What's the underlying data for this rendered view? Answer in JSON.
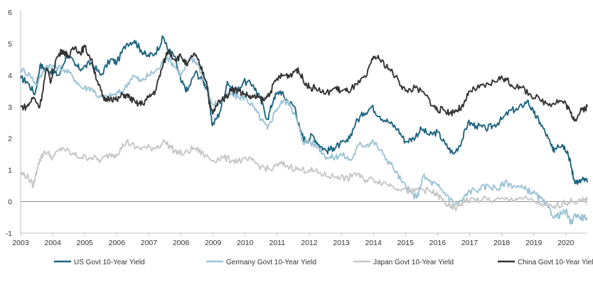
{
  "chart_data": {
    "type": "line",
    "xlabel": "",
    "ylabel": "",
    "xlim": [
      2003,
      2020.67
    ],
    "ylim": [
      -1,
      6
    ],
    "x_ticks": [
      "2003",
      "2004",
      "2005",
      "2006",
      "2007",
      "2008",
      "2009",
      "2010",
      "2011",
      "2012",
      "2013",
      "2014",
      "2015",
      "2016",
      "2017",
      "2018",
      "2019",
      "2020"
    ],
    "y_ticks": [
      "-1",
      "0",
      "1",
      "2",
      "3",
      "4",
      "5",
      "6"
    ],
    "zero_line": true,
    "grid": false,
    "legend_position": "bottom",
    "series": [
      {
        "name": "US Govt 10-Year Yield",
        "color": "#1f6580",
        "x": [
          2003.0,
          2003.2,
          2003.45,
          2003.6,
          2003.8,
          2004.0,
          2004.2,
          2004.45,
          2004.7,
          2004.9,
          2005.2,
          2005.5,
          2005.8,
          2006.0,
          2006.3,
          2006.55,
          2006.75,
          2006.95,
          2007.2,
          2007.45,
          2007.6,
          2007.8,
          2008.0,
          2008.2,
          2008.45,
          2008.7,
          2008.85,
          2008.98,
          2009.2,
          2009.45,
          2009.7,
          2009.95,
          2010.25,
          2010.45,
          2010.7,
          2010.9,
          2011.1,
          2011.3,
          2011.55,
          2011.72,
          2011.9,
          2012.1,
          2012.3,
          2012.55,
          2012.75,
          2012.95,
          2013.2,
          2013.45,
          2013.7,
          2013.95,
          2014.2,
          2014.5,
          2014.75,
          2015.0,
          2015.25,
          2015.5,
          2015.75,
          2016.0,
          2016.25,
          2016.5,
          2016.75,
          2016.95,
          2017.2,
          2017.5,
          2017.75,
          2018.0,
          2018.3,
          2018.5,
          2018.8,
          2019.0,
          2019.2,
          2019.45,
          2019.6,
          2019.75,
          2019.9,
          2020.05,
          2020.15,
          2020.25,
          2020.4,
          2020.55,
          2020.67
        ],
        "values": [
          3.9,
          3.8,
          3.4,
          4.3,
          4.2,
          4.1,
          4.0,
          4.7,
          4.3,
          4.2,
          4.4,
          4.0,
          4.5,
          4.4,
          5.0,
          5.1,
          4.8,
          4.6,
          4.7,
          5.2,
          4.8,
          4.6,
          3.8,
          3.5,
          4.1,
          3.8,
          3.5,
          2.4,
          2.8,
          3.8,
          3.4,
          3.8,
          3.7,
          3.3,
          2.6,
          3.3,
          3.5,
          3.2,
          3.0,
          2.2,
          1.9,
          2.1,
          1.8,
          1.6,
          1.7,
          1.8,
          1.9,
          2.5,
          2.8,
          3.0,
          2.7,
          2.5,
          2.3,
          1.9,
          2.0,
          2.3,
          2.1,
          2.2,
          1.8,
          1.5,
          1.9,
          2.5,
          2.4,
          2.3,
          2.4,
          2.6,
          2.9,
          2.9,
          3.2,
          2.8,
          2.5,
          2.0,
          1.6,
          1.8,
          1.8,
          1.6,
          1.2,
          0.7,
          0.6,
          0.7,
          0.6
        ]
      },
      {
        "name": "Germany Govt 10-Year Yield",
        "color": "#9cc3d5",
        "x": [
          2003.0,
          2003.3,
          2003.5,
          2003.8,
          2004.0,
          2004.3,
          2004.6,
          2004.9,
          2005.2,
          2005.45,
          2005.7,
          2005.95,
          2006.2,
          2006.5,
          2006.75,
          2007.0,
          2007.3,
          2007.55,
          2007.8,
          2008.0,
          2008.3,
          2008.5,
          2008.75,
          2008.95,
          2009.2,
          2009.5,
          2009.8,
          2010.0,
          2010.25,
          2010.5,
          2010.7,
          2010.95,
          2011.2,
          2011.4,
          2011.6,
          2011.8,
          2012.0,
          2012.3,
          2012.55,
          2012.8,
          2013.0,
          2013.3,
          2013.55,
          2013.8,
          2014.0,
          2014.3,
          2014.6,
          2014.9,
          2015.15,
          2015.35,
          2015.55,
          2015.8,
          2016.0,
          2016.3,
          2016.55,
          2016.75,
          2016.95,
          2017.3,
          2017.6,
          2017.9,
          2018.1,
          2018.4,
          2018.7,
          2018.95,
          2019.2,
          2019.45,
          2019.65,
          2019.85,
          2020.0,
          2020.15,
          2020.3,
          2020.45,
          2020.67
        ],
        "values": [
          4.2,
          4.0,
          3.7,
          4.3,
          4.3,
          4.2,
          4.0,
          3.6,
          3.6,
          3.3,
          3.3,
          3.4,
          3.5,
          4.0,
          3.8,
          4.0,
          4.2,
          4.6,
          4.3,
          4.0,
          4.5,
          4.4,
          3.8,
          3.1,
          3.1,
          3.4,
          3.3,
          3.3,
          3.0,
          2.6,
          2.3,
          2.9,
          3.2,
          3.1,
          2.6,
          1.9,
          1.9,
          1.7,
          1.4,
          1.4,
          1.5,
          1.3,
          1.8,
          1.8,
          1.9,
          1.5,
          1.1,
          0.6,
          0.3,
          0.1,
          0.8,
          0.6,
          0.5,
          0.2,
          -0.1,
          0.0,
          0.3,
          0.4,
          0.5,
          0.4,
          0.6,
          0.5,
          0.4,
          0.3,
          0.1,
          -0.2,
          -0.5,
          -0.4,
          -0.3,
          -0.7,
          -0.4,
          -0.5,
          -0.5
        ]
      },
      {
        "name": "Japan Govt 10-Year Yield",
        "color": "#c6c6c6",
        "x": [
          2003.0,
          2003.2,
          2003.4,
          2003.55,
          2003.75,
          2004.0,
          2004.3,
          2004.6,
          2004.9,
          2005.2,
          2005.5,
          2005.8,
          2006.0,
          2006.3,
          2006.6,
          2006.9,
          2007.2,
          2007.5,
          2007.8,
          2008.1,
          2008.4,
          2008.7,
          2009.0,
          2009.3,
          2009.6,
          2009.9,
          2010.2,
          2010.5,
          2010.8,
          2011.1,
          2011.4,
          2011.7,
          2012.0,
          2012.3,
          2012.6,
          2012.9,
          2013.2,
          2013.4,
          2013.7,
          2014.0,
          2014.3,
          2014.6,
          2014.9,
          2015.2,
          2015.5,
          2015.8,
          2016.0,
          2016.2,
          2016.4,
          2016.6,
          2016.8,
          2017.0,
          2017.4,
          2017.8,
          2018.2,
          2018.6,
          2019.0,
          2019.3,
          2019.6,
          2019.9,
          2020.2,
          2020.5,
          2020.67
        ],
        "values": [
          0.9,
          0.8,
          0.5,
          1.2,
          1.6,
          1.4,
          1.7,
          1.5,
          1.4,
          1.4,
          1.3,
          1.5,
          1.5,
          1.9,
          1.7,
          1.7,
          1.7,
          1.9,
          1.6,
          1.5,
          1.7,
          1.5,
          1.3,
          1.4,
          1.3,
          1.3,
          1.3,
          1.1,
          1.0,
          1.2,
          1.1,
          1.0,
          1.0,
          0.9,
          0.8,
          0.8,
          0.7,
          0.9,
          0.7,
          0.7,
          0.6,
          0.5,
          0.4,
          0.3,
          0.4,
          0.3,
          0.2,
          0.0,
          -0.2,
          -0.2,
          0.0,
          0.05,
          0.06,
          0.04,
          0.06,
          0.12,
          0.0,
          -0.1,
          -0.2,
          -0.05,
          0.0,
          0.02,
          0.03
        ]
      },
      {
        "name": "China Govt 10-Year Yield",
        "color": "#333333",
        "x": [
          2003.0,
          2003.2,
          2003.4,
          2003.6,
          2003.8,
          2003.95,
          2004.1,
          2004.3,
          2004.5,
          2004.7,
          2004.85,
          2005.0,
          2005.2,
          2005.4,
          2005.6,
          2005.8,
          2006.0,
          2006.2,
          2006.4,
          2006.6,
          2006.8,
          2007.0,
          2007.2,
          2007.4,
          2007.6,
          2007.8,
          2008.0,
          2008.2,
          2008.4,
          2008.6,
          2008.8,
          2008.9,
          2009.0,
          2009.2,
          2009.4,
          2009.6,
          2009.8,
          2010.0,
          2010.2,
          2010.4,
          2010.6,
          2010.8,
          2011.0,
          2011.2,
          2011.4,
          2011.6,
          2011.8,
          2012.0,
          2012.2,
          2012.5,
          2012.8,
          2013.0,
          2013.2,
          2013.5,
          2013.8,
          2014.0,
          2014.2,
          2014.5,
          2014.8,
          2015.0,
          2015.3,
          2015.6,
          2015.9,
          2016.0,
          2016.2,
          2016.4,
          2016.6,
          2016.8,
          2017.0,
          2017.3,
          2017.6,
          2017.9,
          2018.1,
          2018.3,
          2018.6,
          2018.9,
          2019.2,
          2019.5,
          2019.8,
          2020.0,
          2020.15,
          2020.3,
          2020.5,
          2020.67
        ],
        "values": [
          3.0,
          3.0,
          3.3,
          3.0,
          4.2,
          3.8,
          4.5,
          4.8,
          4.6,
          4.9,
          4.7,
          4.9,
          4.5,
          3.8,
          3.2,
          3.3,
          3.2,
          3.4,
          3.3,
          3.1,
          3.1,
          3.3,
          3.5,
          4.2,
          4.8,
          4.5,
          4.6,
          4.3,
          4.7,
          4.3,
          3.8,
          3.0,
          2.8,
          3.2,
          3.3,
          3.6,
          3.5,
          3.4,
          3.3,
          3.3,
          3.2,
          3.5,
          3.9,
          4.0,
          4.0,
          4.2,
          3.9,
          3.6,
          3.6,
          3.4,
          3.6,
          3.5,
          3.5,
          3.7,
          4.0,
          4.6,
          4.5,
          4.2,
          3.8,
          3.5,
          3.6,
          3.4,
          3.0,
          2.9,
          2.9,
          2.8,
          2.9,
          3.0,
          3.5,
          3.6,
          3.7,
          3.9,
          3.9,
          3.7,
          3.6,
          3.4,
          3.2,
          3.1,
          3.2,
          3.1,
          2.8,
          2.6,
          2.9,
          3.0
        ]
      }
    ]
  }
}
